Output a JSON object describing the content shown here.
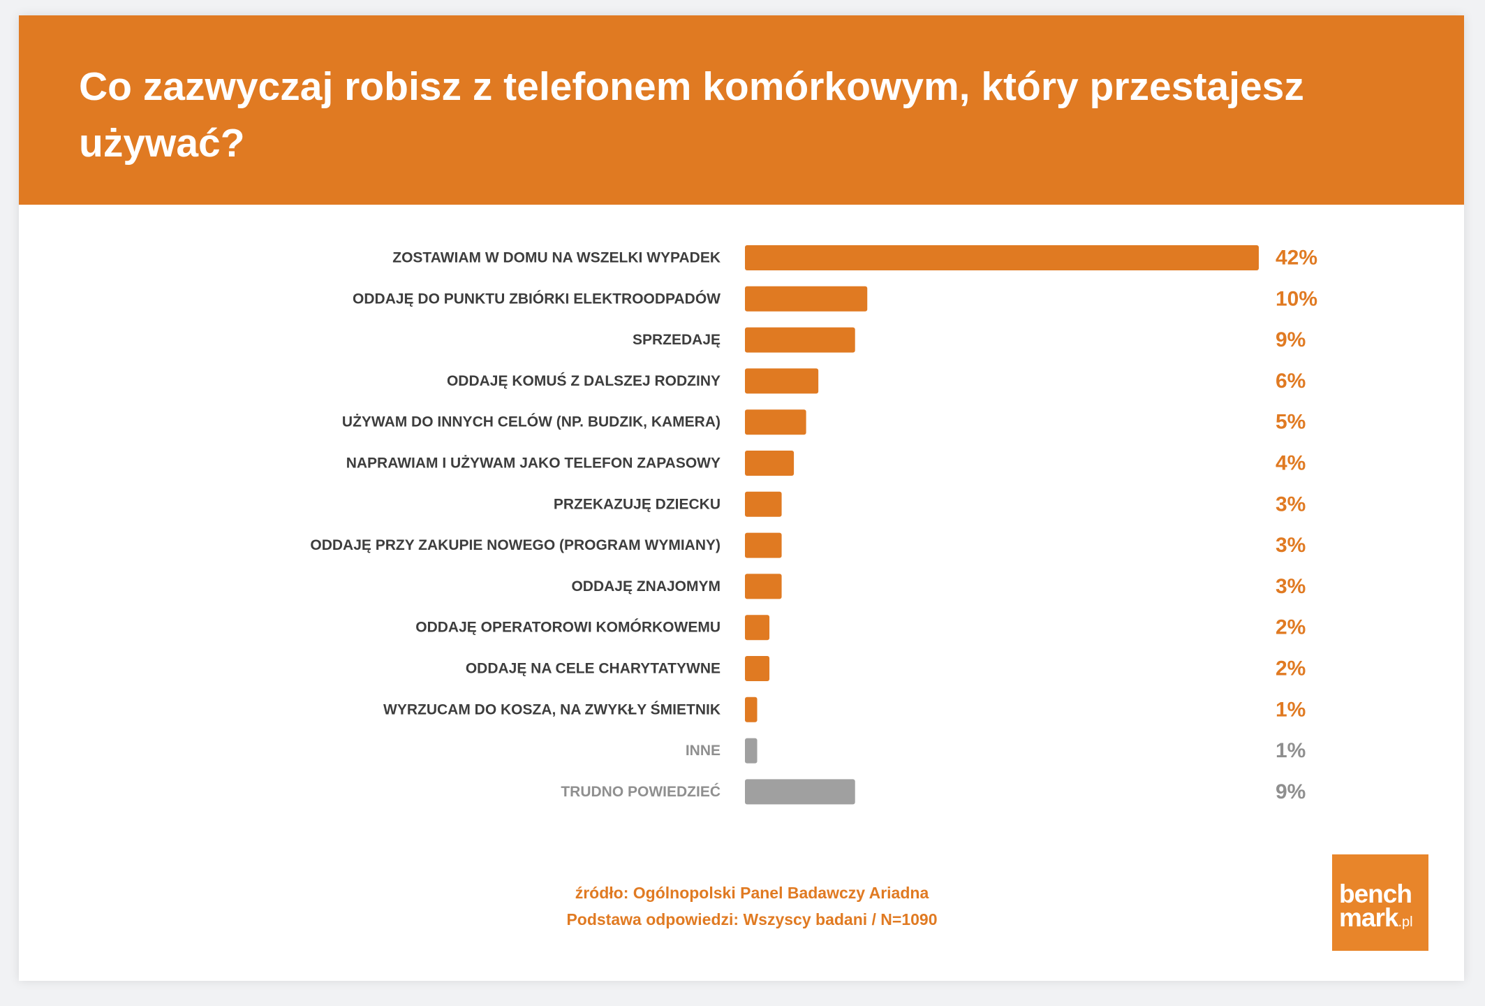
{
  "title": "Co zazwyczaj robisz z telefonem komórkowym, który przestajesz używać?",
  "colors": {
    "accent": "#e07a22",
    "neutral_bar": "#a0a0a0",
    "label_text": "#3d3d3d",
    "neutral_text": "#8f8f8f"
  },
  "chart_data": {
    "type": "bar",
    "orientation": "horizontal",
    "categories": [
      "ZOSTAWIAM W DOMU NA WSZELKI WYPADEK",
      "ODDAJĘ DO PUNKTU ZBIÓRKI ELEKTROODPADÓW",
      "SPRZEDAJĘ",
      "ODDAJĘ KOMUŚ Z DALSZEJ RODZINY",
      "UŻYWAM DO INNYCH CELÓW (NP. BUDZIK, KAMERA)",
      "NAPRAWIAM I UŻYWAM JAKO TELEFON ZAPASOWY",
      "PRZEKAZUJĘ DZIECKU",
      "ODDAJĘ PRZY ZAKUPIE NOWEGO (PROGRAM WYMIANY)",
      "ODDAJĘ ZNAJOMYM",
      "ODDAJĘ OPERATOROWI KOMÓRKOWEMU",
      "ODDAJĘ NA CELE CHARYTATYWNE",
      "WYRZUCAM DO KOSZA, NA ZWYKŁY ŚMIETNIK",
      "INNE",
      "TRUDNO POWIEDZIEĆ"
    ],
    "values": [
      42,
      10,
      9,
      6,
      5,
      4,
      3,
      3,
      3,
      2,
      2,
      1,
      1,
      9
    ],
    "value_labels": [
      "42%",
      "10%",
      "9%",
      "6%",
      "5%",
      "4%",
      "3%",
      "3%",
      "3%",
      "2%",
      "2%",
      "1%",
      "1%",
      "9%"
    ],
    "neutral_categories": [
      "INNE",
      "TRUDNO POWIEDZIEĆ"
    ],
    "unit": "%",
    "xlim": [
      0,
      42
    ],
    "grid": false,
    "legend": "none"
  },
  "footer": {
    "source_line": "źródło: Ogólnopolski Panel Badawczy Ariadna",
    "base_line": "Podstawa odpowiedzi: Wszyscy badani / N=1090"
  },
  "logo": {
    "line1": "bench",
    "line2": "mark",
    "suffix": ".pl"
  }
}
